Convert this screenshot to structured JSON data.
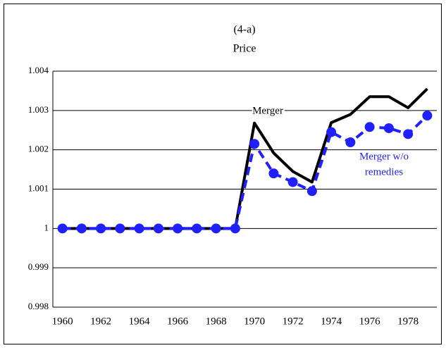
{
  "chart_data": {
    "type": "line",
    "title": "(4-a)",
    "subtitle": "Price",
    "x": [
      1960,
      1961,
      1962,
      1963,
      1964,
      1965,
      1966,
      1967,
      1968,
      1969,
      1970,
      1971,
      1972,
      1973,
      1974,
      1975,
      1976,
      1977,
      1978,
      1979
    ],
    "series": [
      {
        "name": "Merger",
        "color": "#000000",
        "values": [
          1,
          1,
          1,
          1,
          1,
          1,
          1,
          1,
          1,
          1,
          1.00268,
          1.00192,
          1.00145,
          1.00118,
          1.00269,
          1.0029,
          1.00335,
          1.00335,
          1.00307,
          1.00355
        ]
      },
      {
        "name": "Merger w/o remedies",
        "color": "#1f1fff",
        "values": [
          1,
          1,
          1,
          1,
          1,
          1,
          1,
          1,
          1,
          1,
          1.00215,
          1.0014,
          1.00118,
          1.00095,
          1.00245,
          1.00219,
          1.00258,
          1.00255,
          1.0024,
          1.00287
        ]
      }
    ],
    "annotations": [
      {
        "text": "Merger"
      },
      {
        "text": [
          "Merger w/o",
          "remedies"
        ]
      }
    ],
    "xlim": [
      1959.5,
      1979.5
    ],
    "xticks": [
      1960,
      1962,
      1964,
      1966,
      1968,
      1970,
      1972,
      1974,
      1976,
      1978
    ],
    "ylim": [
      0.998,
      1.004
    ],
    "yticks": [
      0.998,
      0.999,
      1,
      1.001,
      1.002,
      1.003,
      1.004
    ],
    "grid": true
  }
}
